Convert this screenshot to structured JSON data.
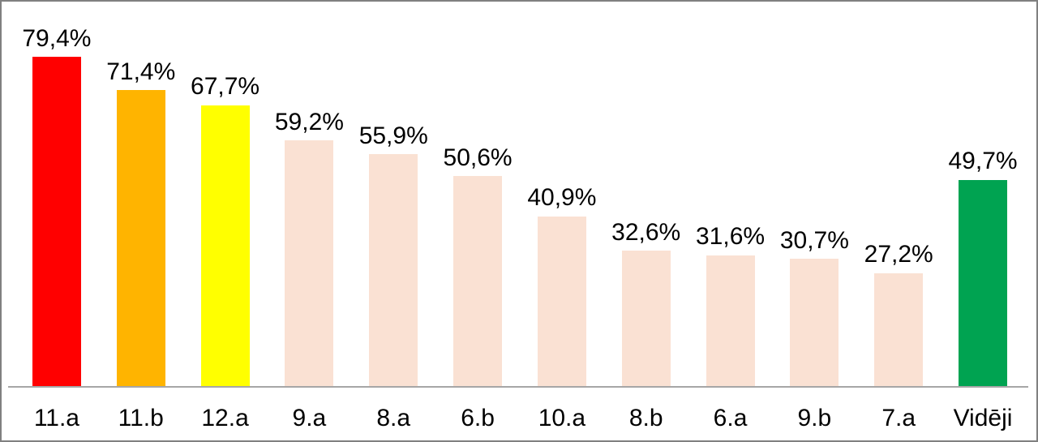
{
  "chart_data": {
    "type": "bar",
    "title": "",
    "xlabel": "",
    "ylabel": "",
    "categories": [
      "11.a",
      "11.b",
      "12.a",
      "9.a",
      "8.a",
      "6.b",
      "10.a",
      "8.b",
      "6.a",
      "9.b",
      "7.a",
      "Vidēji"
    ],
    "values": [
      79.4,
      71.4,
      67.7,
      59.2,
      55.9,
      50.6,
      40.9,
      32.6,
      31.6,
      30.7,
      27.2,
      49.7
    ],
    "value_labels": [
      "79,4%",
      "71,4%",
      "67,7%",
      "59,2%",
      "55,9%",
      "50,6%",
      "40,9%",
      "32,6%",
      "31,6%",
      "30,7%",
      "27,2%",
      "49,7%"
    ],
    "bar_colors": [
      "#FF0000",
      "#FFB400",
      "#FFFF00",
      "#FAE1D3",
      "#FAE1D3",
      "#FAE1D3",
      "#FAE1D3",
      "#FAE1D3",
      "#FAE1D3",
      "#FAE1D3",
      "#FAE1D3",
      "#00A351"
    ],
    "ylim": [
      0,
      90
    ],
    "gridlines": false,
    "legend": "none",
    "data_labels": true,
    "decimal_separator": ",",
    "axis_line_color": "#A6A6A6",
    "frame_border_color": "#808080",
    "label_color": "#000000"
  }
}
